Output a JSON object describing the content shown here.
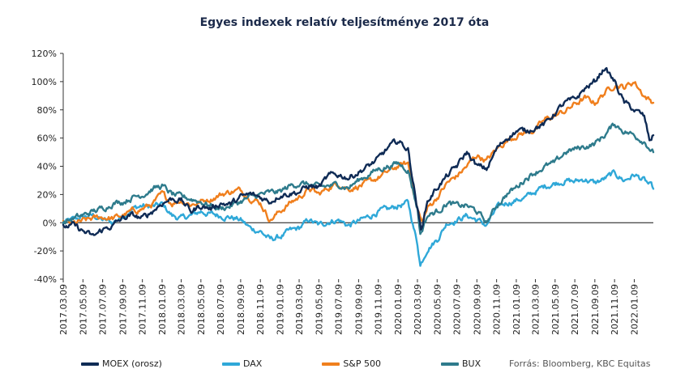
{
  "chart_data": {
    "type": "line",
    "title": "Egyes indexek relatív teljesítménye 2017 óta",
    "xlabel": "",
    "ylabel": "",
    "ylim": [
      -40,
      120
    ],
    "yticks": [
      -40,
      -20,
      0,
      20,
      40,
      60,
      80,
      100,
      120
    ],
    "ytick_labels": [
      "-40%",
      "-20%",
      "0%",
      "20%",
      "40%",
      "60%",
      "80%",
      "100%",
      "120%"
    ],
    "xtick_labels": [
      "2017.03.09",
      "2017.05.09",
      "2017.07.09",
      "2017.09.09",
      "2017.11.09",
      "2018.01.09",
      "2018.03.09",
      "2018.05.09",
      "2018.07.09",
      "2018.09.09",
      "2018.11.09",
      "2019.01.09",
      "2019.03.09",
      "2019.05.09",
      "2019.07.09",
      "2019.09.09",
      "2019.11.09",
      "2020.01.09",
      "2020.03.09",
      "2020.05.09",
      "2020.07.09",
      "2020.09.09",
      "2020.11.09",
      "2021.01.09",
      "2021.03.09",
      "2021.05.09",
      "2021.07.09",
      "2021.09.09",
      "2021.11.09",
      "2022.01.09"
    ],
    "x_range": [
      "2017.03.09",
      "2022.03.09"
    ],
    "grid": false,
    "legend_position": "bottom",
    "series": [
      {
        "name": "MOEX (orosz)",
        "color": "#0f2b55",
        "points": [
          [
            "2017.03.09",
            -3
          ],
          [
            "2017.04.09",
            -2
          ],
          [
            "2017.05.09",
            -6
          ],
          [
            "2017.06.09",
            -10
          ],
          [
            "2017.07.09",
            -5
          ],
          [
            "2017.08.09",
            -2
          ],
          [
            "2017.09.09",
            3
          ],
          [
            "2017.10.09",
            5
          ],
          [
            "2017.11.09",
            3
          ],
          [
            "2017.12.09",
            8
          ],
          [
            "2018.01.09",
            14
          ],
          [
            "2018.02.09",
            17
          ],
          [
            "2018.03.09",
            16
          ],
          [
            "2018.04.09",
            8
          ],
          [
            "2018.05.09",
            12
          ],
          [
            "2018.06.09",
            10
          ],
          [
            "2018.07.09",
            14
          ],
          [
            "2018.08.09",
            13
          ],
          [
            "2018.09.09",
            18
          ],
          [
            "2018.10.09",
            20
          ],
          [
            "2018.11.09",
            18
          ],
          [
            "2018.12.09",
            15
          ],
          [
            "2019.01.09",
            20
          ],
          [
            "2019.02.09",
            21
          ],
          [
            "2019.03.09",
            22
          ],
          [
            "2019.04.09",
            26
          ],
          [
            "2019.05.09",
            25
          ],
          [
            "2019.06.09",
            33
          ],
          [
            "2019.07.09",
            34
          ],
          [
            "2019.08.09",
            32
          ],
          [
            "2019.09.09",
            36
          ],
          [
            "2019.10.09",
            40
          ],
          [
            "2019.11.09",
            45
          ],
          [
            "2019.12.09",
            53
          ],
          [
            "2020.01.09",
            58
          ],
          [
            "2020.02.09",
            52
          ],
          [
            "2020.03.09",
            10
          ],
          [
            "2020.03.20",
            -5
          ],
          [
            "2020.04.09",
            15
          ],
          [
            "2020.05.09",
            25
          ],
          [
            "2020.06.09",
            33
          ],
          [
            "2020.07.09",
            40
          ],
          [
            "2020.08.09",
            50
          ],
          [
            "2020.09.09",
            40
          ],
          [
            "2020.10.09",
            38
          ],
          [
            "2020.11.09",
            52
          ],
          [
            "2020.12.09",
            60
          ],
          [
            "2021.01.09",
            65
          ],
          [
            "2021.02.09",
            65
          ],
          [
            "2021.03.09",
            68
          ],
          [
            "2021.04.09",
            70
          ],
          [
            "2021.05.09",
            78
          ],
          [
            "2021.06.09",
            85
          ],
          [
            "2021.07.09",
            87
          ],
          [
            "2021.08.09",
            95
          ],
          [
            "2021.09.09",
            100
          ],
          [
            "2021.10.09",
            110
          ],
          [
            "2021.11.09",
            100
          ],
          [
            "2021.12.09",
            85
          ],
          [
            "2022.01.09",
            80
          ],
          [
            "2022.02.09",
            75
          ],
          [
            "2022.02.25",
            58
          ],
          [
            "2022.03.09",
            62
          ]
        ]
      },
      {
        "name": "DAX",
        "color": "#2fa8d8",
        "points": [
          [
            "2017.03.09",
            0
          ],
          [
            "2017.04.09",
            2
          ],
          [
            "2017.05.09",
            4
          ],
          [
            "2017.06.09",
            5
          ],
          [
            "2017.07.09",
            2
          ],
          [
            "2017.08.09",
            0
          ],
          [
            "2017.09.09",
            5
          ],
          [
            "2017.10.09",
            10
          ],
          [
            "2017.11.09",
            12
          ],
          [
            "2017.12.09",
            11
          ],
          [
            "2018.01.09",
            13
          ],
          [
            "2018.02.09",
            5
          ],
          [
            "2018.03.09",
            3
          ],
          [
            "2018.04.09",
            5
          ],
          [
            "2018.05.09",
            8
          ],
          [
            "2018.06.09",
            6
          ],
          [
            "2018.07.09",
            5
          ],
          [
            "2018.08.09",
            4
          ],
          [
            "2018.09.09",
            2
          ],
          [
            "2018.10.09",
            -4
          ],
          [
            "2018.11.09",
            -6
          ],
          [
            "2018.12.09",
            -12
          ],
          [
            "2019.01.09",
            -10
          ],
          [
            "2019.02.09",
            -6
          ],
          [
            "2019.03.09",
            -4
          ],
          [
            "2019.04.09",
            2
          ],
          [
            "2019.05.09",
            -2
          ],
          [
            "2019.06.09",
            1
          ],
          [
            "2019.07.09",
            2
          ],
          [
            "2019.08.09",
            -2
          ],
          [
            "2019.09.09",
            1
          ],
          [
            "2019.10.09",
            4
          ],
          [
            "2019.11.09",
            8
          ],
          [
            "2019.12.09",
            9
          ],
          [
            "2020.01.09",
            12
          ],
          [
            "2020.02.09",
            14
          ],
          [
            "2020.03.09",
            -15
          ],
          [
            "2020.03.18",
            -30
          ],
          [
            "2020.04.09",
            -18
          ],
          [
            "2020.05.09",
            -12
          ],
          [
            "2020.06.09",
            0
          ],
          [
            "2020.07.09",
            2
          ],
          [
            "2020.08.09",
            5
          ],
          [
            "2020.09.09",
            2
          ],
          [
            "2020.10.09",
            -2
          ],
          [
            "2020.11.09",
            10
          ],
          [
            "2020.12.09",
            14
          ],
          [
            "2021.01.09",
            16
          ],
          [
            "2021.02.09",
            18
          ],
          [
            "2021.03.09",
            22
          ],
          [
            "2021.04.09",
            26
          ],
          [
            "2021.05.09",
            28
          ],
          [
            "2021.06.09",
            30
          ],
          [
            "2021.07.09",
            29
          ],
          [
            "2021.08.09",
            31
          ],
          [
            "2021.09.09",
            28
          ],
          [
            "2021.10.09",
            31
          ],
          [
            "2021.11.09",
            35
          ],
          [
            "2021.12.09",
            30
          ],
          [
            "2022.01.09",
            34
          ],
          [
            "2022.02.09",
            30
          ],
          [
            "2022.03.09",
            24
          ]
        ]
      },
      {
        "name": "S&P 500",
        "color": "#f07f1d",
        "points": [
          [
            "2017.03.09",
            0
          ],
          [
            "2017.04.09",
            -1
          ],
          [
            "2017.05.09",
            1
          ],
          [
            "2017.06.09",
            3
          ],
          [
            "2017.07.09",
            4
          ],
          [
            "2017.08.09",
            3
          ],
          [
            "2017.09.09",
            5
          ],
          [
            "2017.10.09",
            8
          ],
          [
            "2017.11.09",
            10
          ],
          [
            "2017.12.09",
            13
          ],
          [
            "2018.01.09",
            20
          ],
          [
            "2018.02.09",
            14
          ],
          [
            "2018.03.09",
            16
          ],
          [
            "2018.04.09",
            13
          ],
          [
            "2018.05.09",
            15
          ],
          [
            "2018.06.09",
            17
          ],
          [
            "2018.07.09",
            20
          ],
          [
            "2018.08.09",
            22
          ],
          [
            "2018.09.09",
            23
          ],
          [
            "2018.10.09",
            18
          ],
          [
            "2018.11.09",
            14
          ],
          [
            "2018.12.09",
            2
          ],
          [
            "2019.01.09",
            8
          ],
          [
            "2019.02.09",
            14
          ],
          [
            "2019.03.09",
            18
          ],
          [
            "2019.04.09",
            24
          ],
          [
            "2019.05.09",
            20
          ],
          [
            "2019.06.09",
            25
          ],
          [
            "2019.07.09",
            28
          ],
          [
            "2019.08.09",
            24
          ],
          [
            "2019.09.09",
            26
          ],
          [
            "2019.10.09",
            28
          ],
          [
            "2019.11.09",
            32
          ],
          [
            "2019.12.09",
            36
          ],
          [
            "2020.01.09",
            40
          ],
          [
            "2020.02.09",
            42
          ],
          [
            "2020.03.09",
            10
          ],
          [
            "2020.03.23",
            0
          ],
          [
            "2020.04.09",
            10
          ],
          [
            "2020.05.09",
            18
          ],
          [
            "2020.06.09",
            28
          ],
          [
            "2020.07.09",
            33
          ],
          [
            "2020.08.09",
            40
          ],
          [
            "2020.09.09",
            48
          ],
          [
            "2020.10.09",
            44
          ],
          [
            "2020.11.09",
            52
          ],
          [
            "2020.12.09",
            58
          ],
          [
            "2021.01.09",
            62
          ],
          [
            "2021.02.09",
            64
          ],
          [
            "2021.03.09",
            66
          ],
          [
            "2021.04.09",
            73
          ],
          [
            "2021.05.09",
            76
          ],
          [
            "2021.06.09",
            79
          ],
          [
            "2021.07.09",
            84
          ],
          [
            "2021.08.09",
            88
          ],
          [
            "2021.09.09",
            85
          ],
          [
            "2021.10.09",
            92
          ],
          [
            "2021.11.09",
            98
          ],
          [
            "2021.12.09",
            96
          ],
          [
            "2022.01.09",
            100
          ],
          [
            "2022.02.09",
            90
          ],
          [
            "2022.03.09",
            85
          ]
        ]
      },
      {
        "name": "BUX",
        "color": "#2e7b8c",
        "points": [
          [
            "2017.03.09",
            0
          ],
          [
            "2017.04.09",
            3
          ],
          [
            "2017.05.09",
            5
          ],
          [
            "2017.06.09",
            8
          ],
          [
            "2017.07.09",
            10
          ],
          [
            "2017.08.09",
            14
          ],
          [
            "2017.09.09",
            15
          ],
          [
            "2017.10.09",
            18
          ],
          [
            "2017.11.09",
            20
          ],
          [
            "2017.12.09",
            24
          ],
          [
            "2018.01.09",
            26
          ],
          [
            "2018.02.09",
            20
          ],
          [
            "2018.03.09",
            18
          ],
          [
            "2018.04.09",
            17
          ],
          [
            "2018.05.09",
            15
          ],
          [
            "2018.06.09",
            12
          ],
          [
            "2018.07.09",
            10
          ],
          [
            "2018.08.09",
            12
          ],
          [
            "2018.09.09",
            15
          ],
          [
            "2018.10.09",
            18
          ],
          [
            "2018.11.09",
            20
          ],
          [
            "2018.12.09",
            21
          ],
          [
            "2019.01.09",
            22
          ],
          [
            "2019.02.09",
            26
          ],
          [
            "2019.03.09",
            28
          ],
          [
            "2019.04.09",
            27
          ],
          [
            "2019.05.09",
            25
          ],
          [
            "2019.06.09",
            26
          ],
          [
            "2019.07.09",
            27
          ],
          [
            "2019.08.09",
            25
          ],
          [
            "2019.09.09",
            30
          ],
          [
            "2019.10.09",
            34
          ],
          [
            "2019.11.09",
            38
          ],
          [
            "2019.12.09",
            40
          ],
          [
            "2020.01.09",
            42
          ],
          [
            "2020.02.09",
            38
          ],
          [
            "2020.03.09",
            10
          ],
          [
            "2020.03.18",
            -8
          ],
          [
            "2020.04.09",
            5
          ],
          [
            "2020.05.09",
            8
          ],
          [
            "2020.06.09",
            14
          ],
          [
            "2020.07.09",
            12
          ],
          [
            "2020.08.09",
            12
          ],
          [
            "2020.09.09",
            8
          ],
          [
            "2020.10.09",
            0
          ],
          [
            "2020.11.09",
            12
          ],
          [
            "2020.12.09",
            20
          ],
          [
            "2021.01.09",
            25
          ],
          [
            "2021.02.09",
            32
          ],
          [
            "2021.03.09",
            36
          ],
          [
            "2021.04.09",
            40
          ],
          [
            "2021.05.09",
            42
          ],
          [
            "2021.06.09",
            50
          ],
          [
            "2021.07.09",
            52
          ],
          [
            "2021.08.09",
            54
          ],
          [
            "2021.09.09",
            56
          ],
          [
            "2021.10.09",
            62
          ],
          [
            "2021.11.09",
            70
          ],
          [
            "2021.12.09",
            65
          ],
          [
            "2022.01.09",
            62
          ],
          [
            "2022.02.09",
            58
          ],
          [
            "2022.03.09",
            50
          ]
        ]
      }
    ]
  },
  "legend": {
    "items": [
      {
        "label": "MOEX (orosz)",
        "color": "#0f2b55"
      },
      {
        "label": "DAX",
        "color": "#2fa8d8"
      },
      {
        "label": "S&P 500",
        "color": "#f07f1d"
      },
      {
        "label": "BUX",
        "color": "#2e7b8c"
      }
    ]
  },
  "source": "Forrás: Bloomberg, KBC Equitas"
}
